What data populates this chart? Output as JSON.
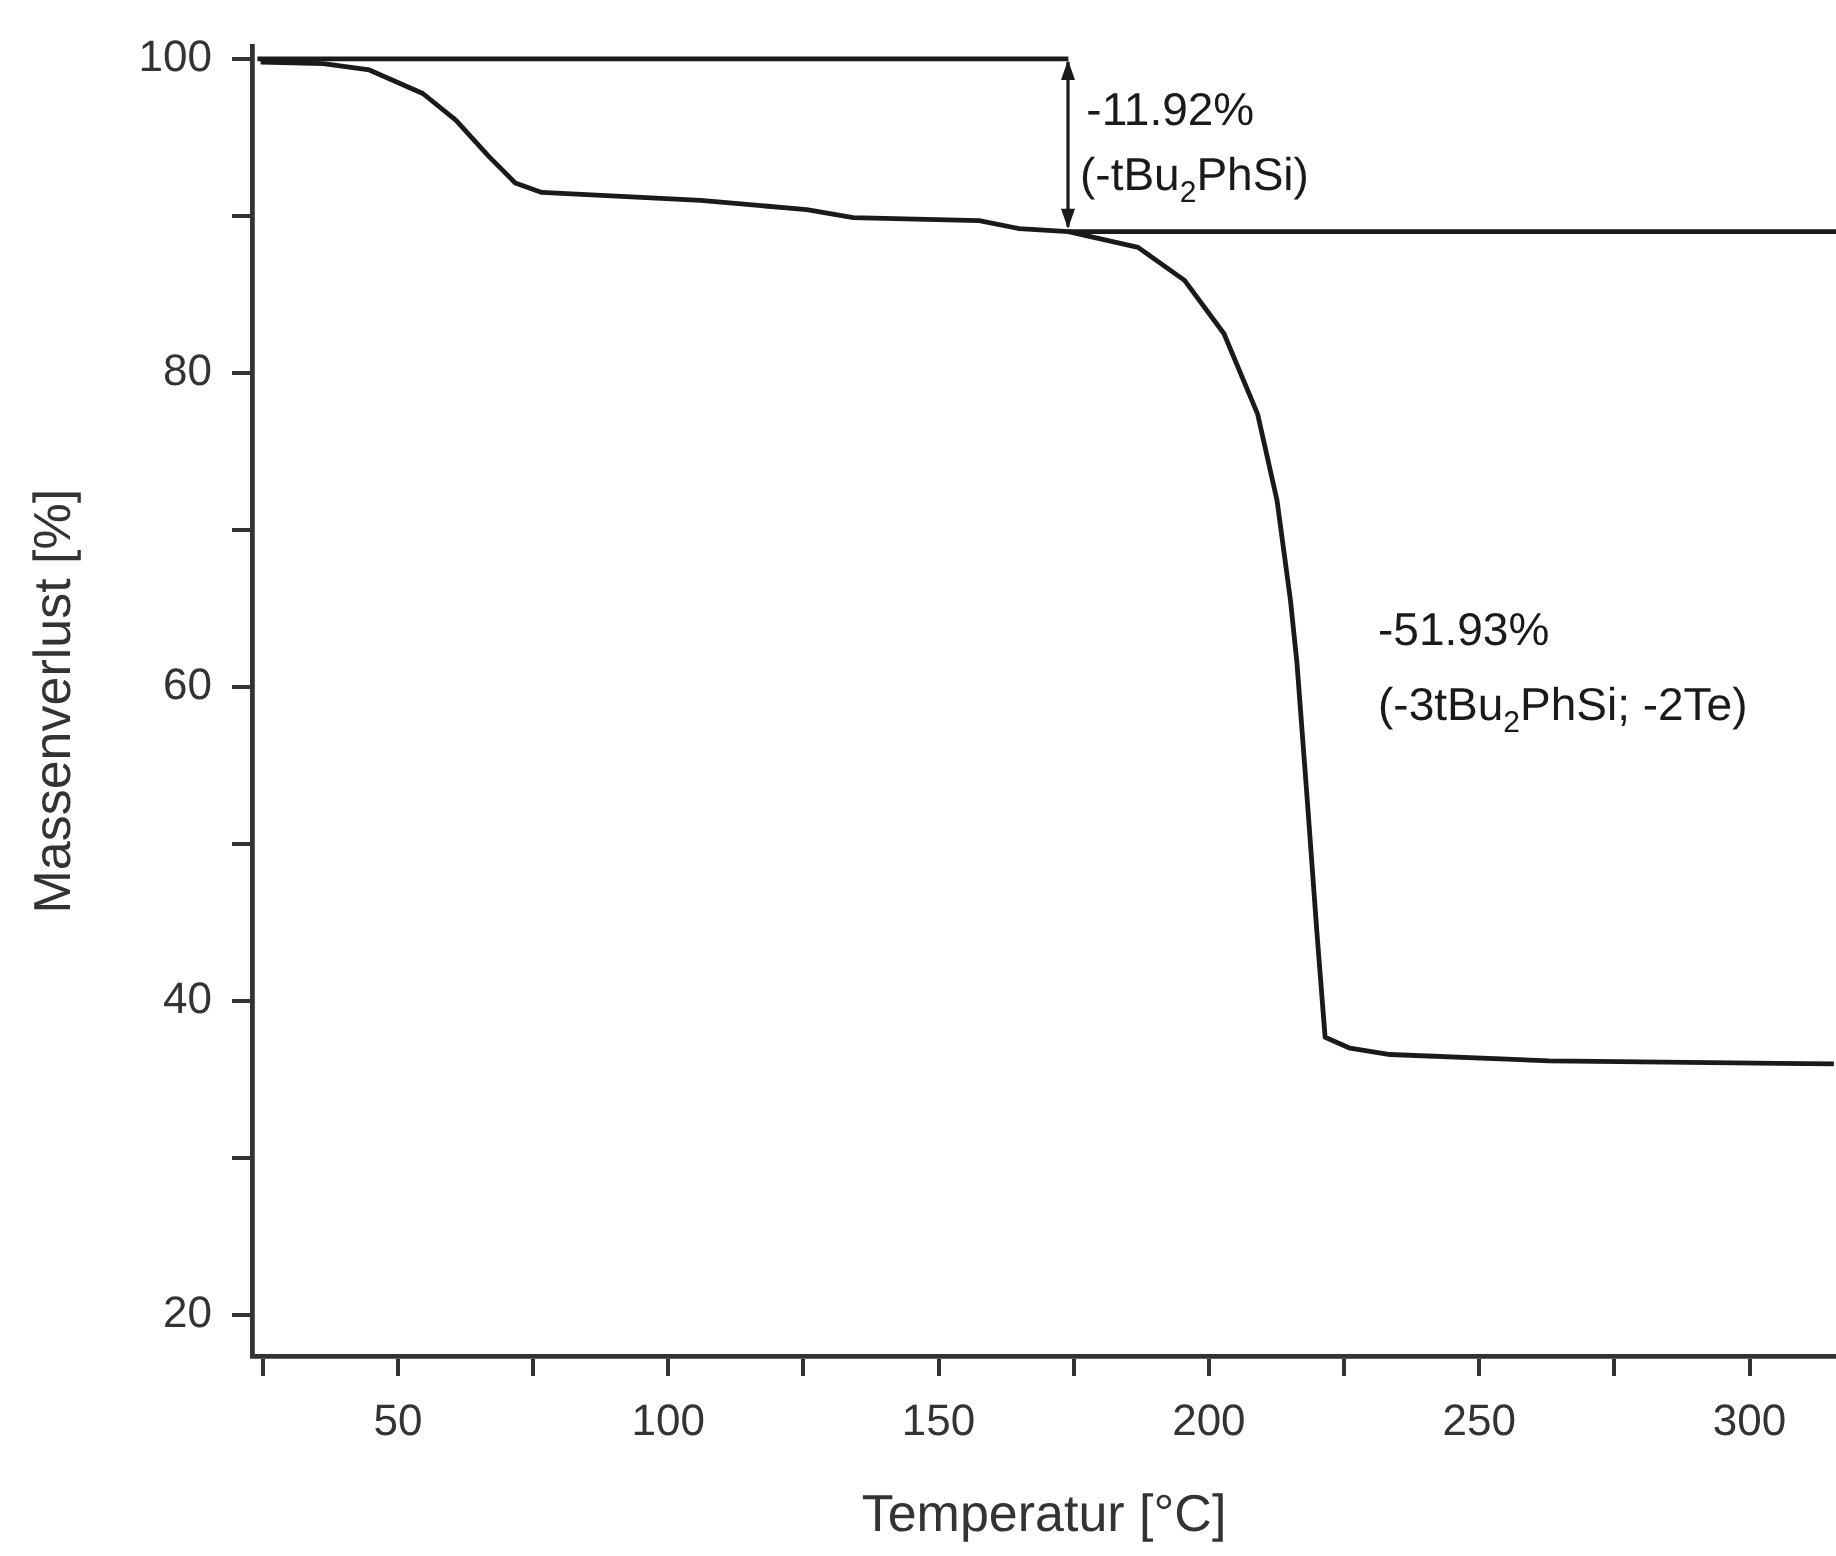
{
  "chart_data": {
    "type": "line",
    "xlabel": "Temperatur [°C]",
    "ylabel": "Massenverlust [%]",
    "series": [
      {
        "color": "#1a1a1a",
        "x": [
          24.6,
          36.2,
          44.7,
          54.6,
          60.7,
          66.8,
          71.7,
          76.6,
          106,
          125.6,
          134.2,
          157.5,
          164.9,
          174,
          186.9,
          195.5,
          202.8,
          209,
          212.6,
          215.1,
          216.3,
          218.2,
          220,
          221.5,
          226.1,
          233.5,
          262.9,
          315.6
        ],
        "values": [
          99.8,
          99.7,
          99.3,
          97.8,
          96.1,
          93.8,
          92.1,
          91.5,
          91.0,
          90.4,
          89.9,
          89.7,
          89.2,
          89.0,
          88.0,
          85.9,
          82.5,
          77.4,
          71.9,
          65.5,
          61.5,
          52.8,
          44.3,
          37.7,
          37.0,
          36.6,
          36.2,
          36.0
        ]
      },
      {
        "color": "#1a1a1a",
        "x": [
          24,
          174
        ],
        "values": [
          100,
          100
        ]
      },
      {
        "color": "#1a1a1a",
        "x": [
          174,
          316
        ],
        "values": [
          89,
          89
        ]
      }
    ],
    "xlim": [
      23,
      316
    ],
    "ylim": [
      17.4,
      100.8
    ],
    "xticks": [
      {
        "value": 25,
        "label": null
      },
      50,
      {
        "value": 75,
        "label": null
      },
      100,
      {
        "value": 125,
        "label": null
      },
      150,
      {
        "value": 175,
        "label": null
      },
      200,
      {
        "value": 225,
        "label": null
      },
      250,
      {
        "value": 275,
        "label": null
      },
      300
    ],
    "yticks": [
      20,
      {
        "value": 30,
        "label": null
      },
      40,
      {
        "value": 50,
        "label": null
      },
      60,
      {
        "value": 70,
        "label": null
      },
      80,
      {
        "value": 90,
        "label": null
      },
      100
    ],
    "annotations": [
      {
        "text": "-11.92%",
        "x": 174,
        "y": 89
      },
      "(-tBu$_{2}$PhSi)",
      "-51.93%",
      "(-3tBu$_{2}$PhSi; -2Te)"
    ],
    "grid": false,
    "legend": false,
    "marker": "none",
    "line_style": "solid"
  }
}
